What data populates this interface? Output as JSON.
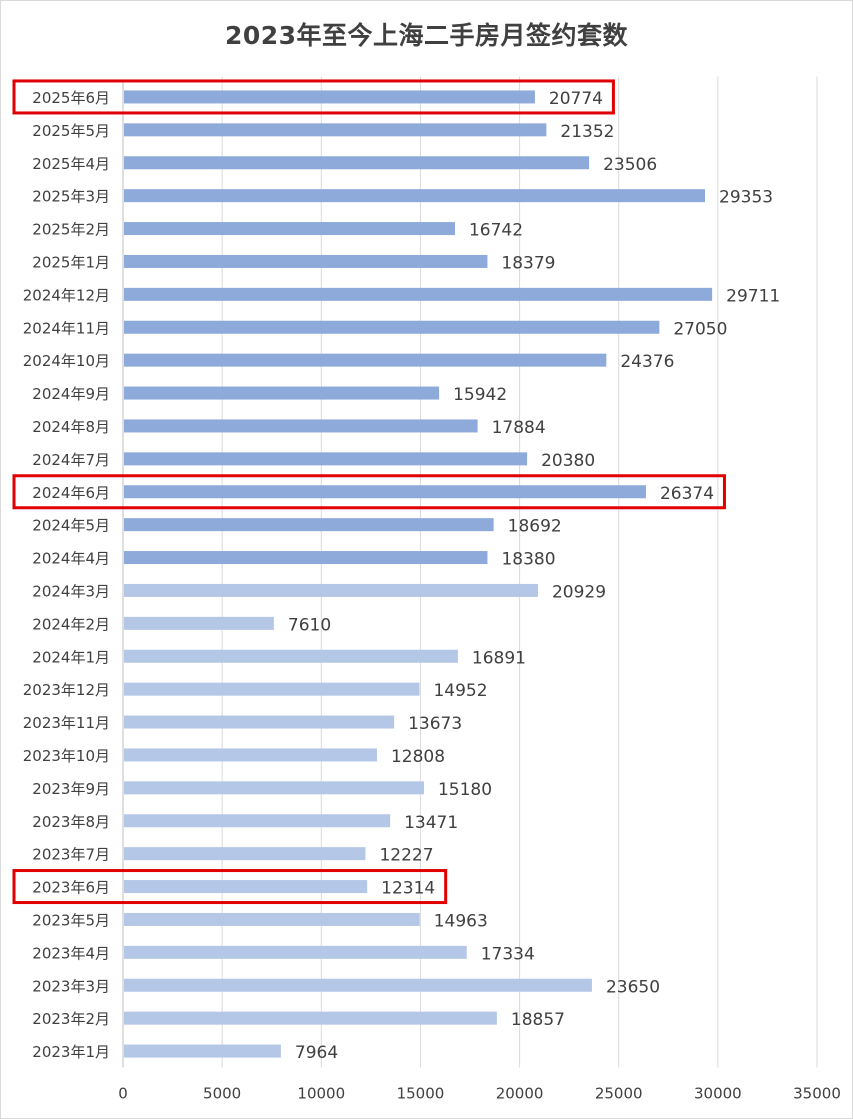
{
  "chart_data": {
    "type": "bar",
    "orientation": "horizontal",
    "title": "2023年至今上海二手房月签约套数",
    "xlim": [
      0,
      35000
    ],
    "xticks": [
      0,
      5000,
      10000,
      15000,
      20000,
      25000,
      30000,
      35000
    ],
    "grid": "vertical",
    "legend": "none",
    "categories": [
      "2025年6月",
      "2025年5月",
      "2025年4月",
      "2025年3月",
      "2025年2月",
      "2025年1月",
      "2024年12月",
      "2024年11月",
      "2024年10月",
      "2024年9月",
      "2024年8月",
      "2024年7月",
      "2024年6月",
      "2024年5月",
      "2024年4月",
      "2024年3月",
      "2024年2月",
      "2024年1月",
      "2023年12月",
      "2023年11月",
      "2023年10月",
      "2023年9月",
      "2023年8月",
      "2023年7月",
      "2023年6月",
      "2023年5月",
      "2023年4月",
      "2023年3月",
      "2023年2月",
      "2023年1月"
    ],
    "values": [
      20774,
      21352,
      23506,
      29353,
      16742,
      18379,
      29711,
      27050,
      24376,
      15942,
      17884,
      20380,
      26374,
      18692,
      18380,
      20929,
      7610,
      16891,
      14952,
      13673,
      12808,
      15180,
      13471,
      12227,
      12314,
      14963,
      17334,
      23650,
      18857,
      7964
    ],
    "highlighted": [
      "2025年6月",
      "2024年6月",
      "2023年6月"
    ],
    "colors": {
      "recent": "#8eaadb",
      "earlier": "#b4c7e7",
      "highlight_box": "#e00000",
      "grid": "#d9d9d9",
      "text": "#404040"
    },
    "darker_from": "2024年4月"
  }
}
